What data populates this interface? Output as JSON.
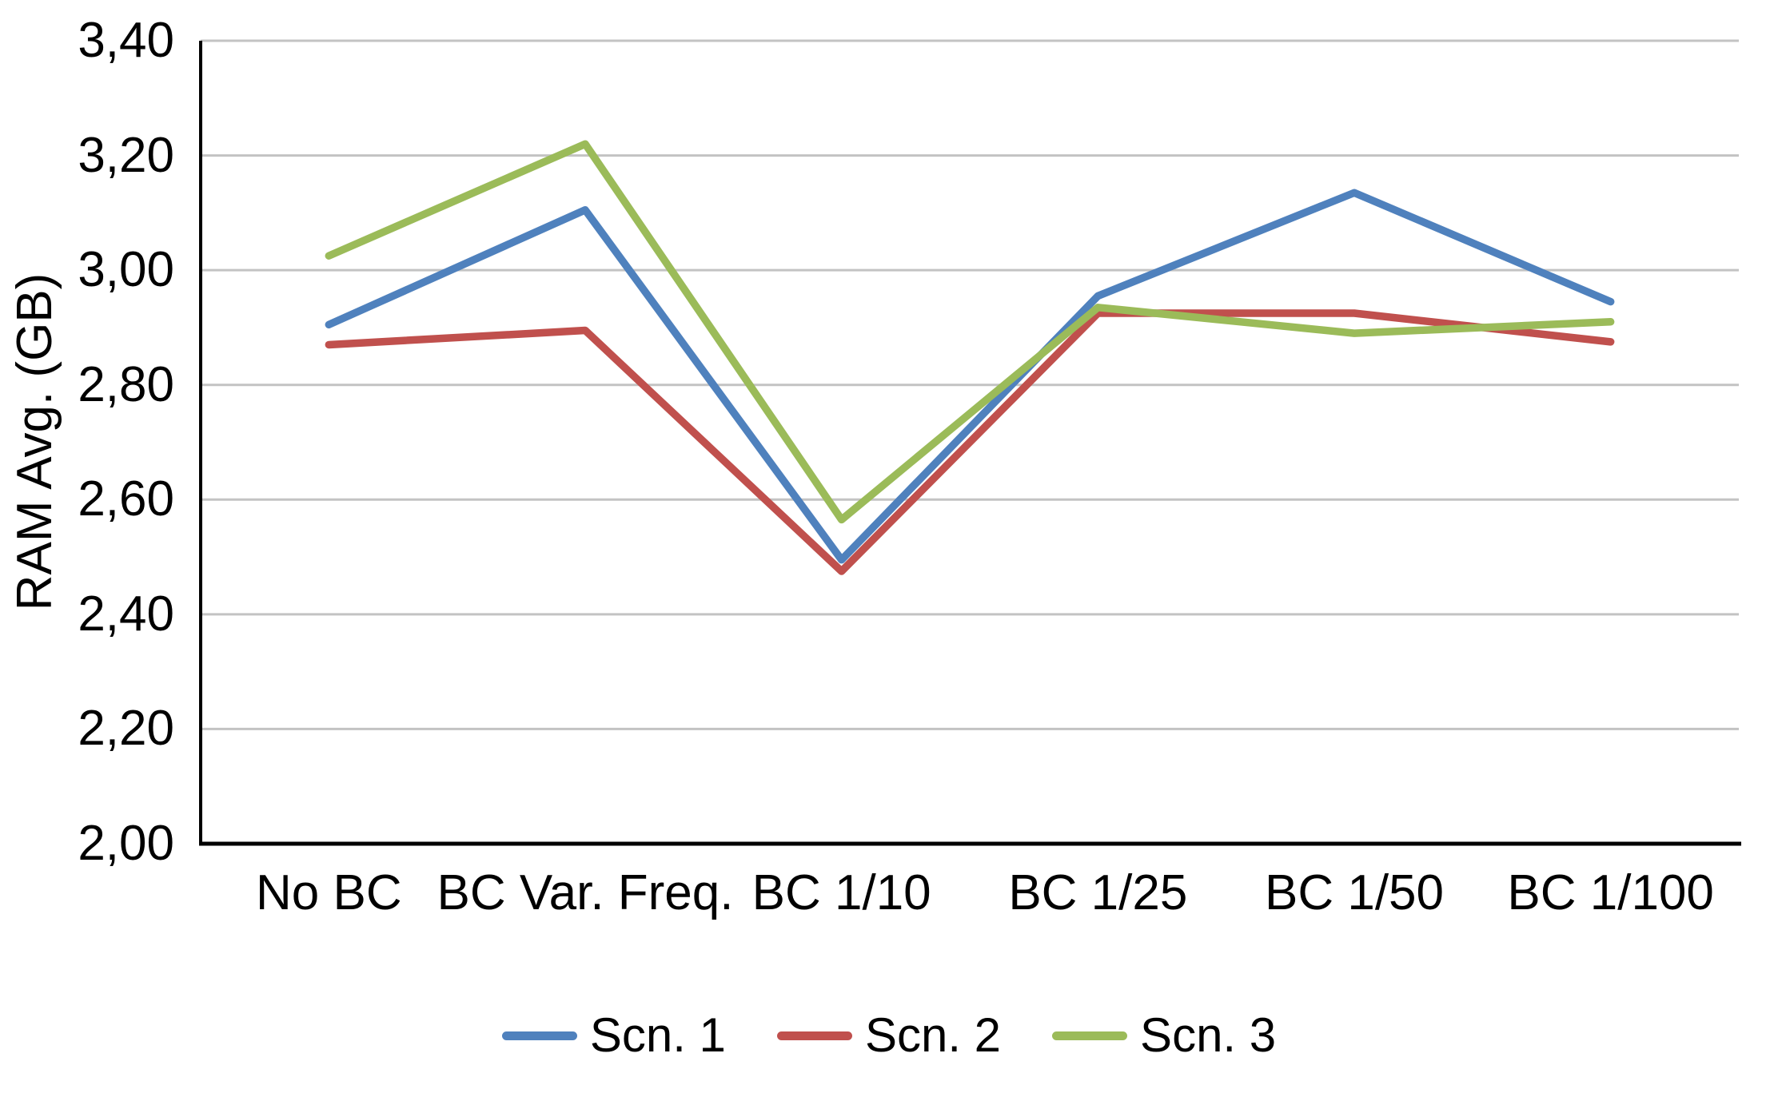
{
  "chart_data": {
    "type": "line",
    "title": "",
    "xlabel": "",
    "ylabel": "RAM Avg. (GB)",
    "categories": [
      "No BC",
      "BC Var. Freq.",
      "BC 1/10",
      "BC 1/25",
      "BC 1/50",
      "BC 1/100"
    ],
    "series": [
      {
        "name": "Scn. 1",
        "color": "#4F81BD",
        "values": [
          2.905,
          3.105,
          2.495,
          2.955,
          3.135,
          2.945
        ]
      },
      {
        "name": "Scn. 2",
        "color": "#C0504D",
        "values": [
          2.87,
          2.895,
          2.475,
          2.925,
          2.925,
          2.875
        ]
      },
      {
        "name": "Scn. 3",
        "color": "#9BBB59",
        "values": [
          3.025,
          3.22,
          2.565,
          2.935,
          2.89,
          2.91
        ]
      }
    ],
    "ylim": [
      2.0,
      3.4
    ],
    "ytick_step": 0.2,
    "yticks_display": [
      "3,40",
      "3,20",
      "3,00",
      "2,80",
      "2,60",
      "2,40",
      "2,20",
      "2,00"
    ],
    "decimal_separator": ",",
    "grid": true,
    "legend_position": "bottom"
  },
  "colors": {
    "background": "#FFFFFF",
    "text": "#000000",
    "gridline": "#C3C3C3",
    "axis_line": "#000000"
  }
}
